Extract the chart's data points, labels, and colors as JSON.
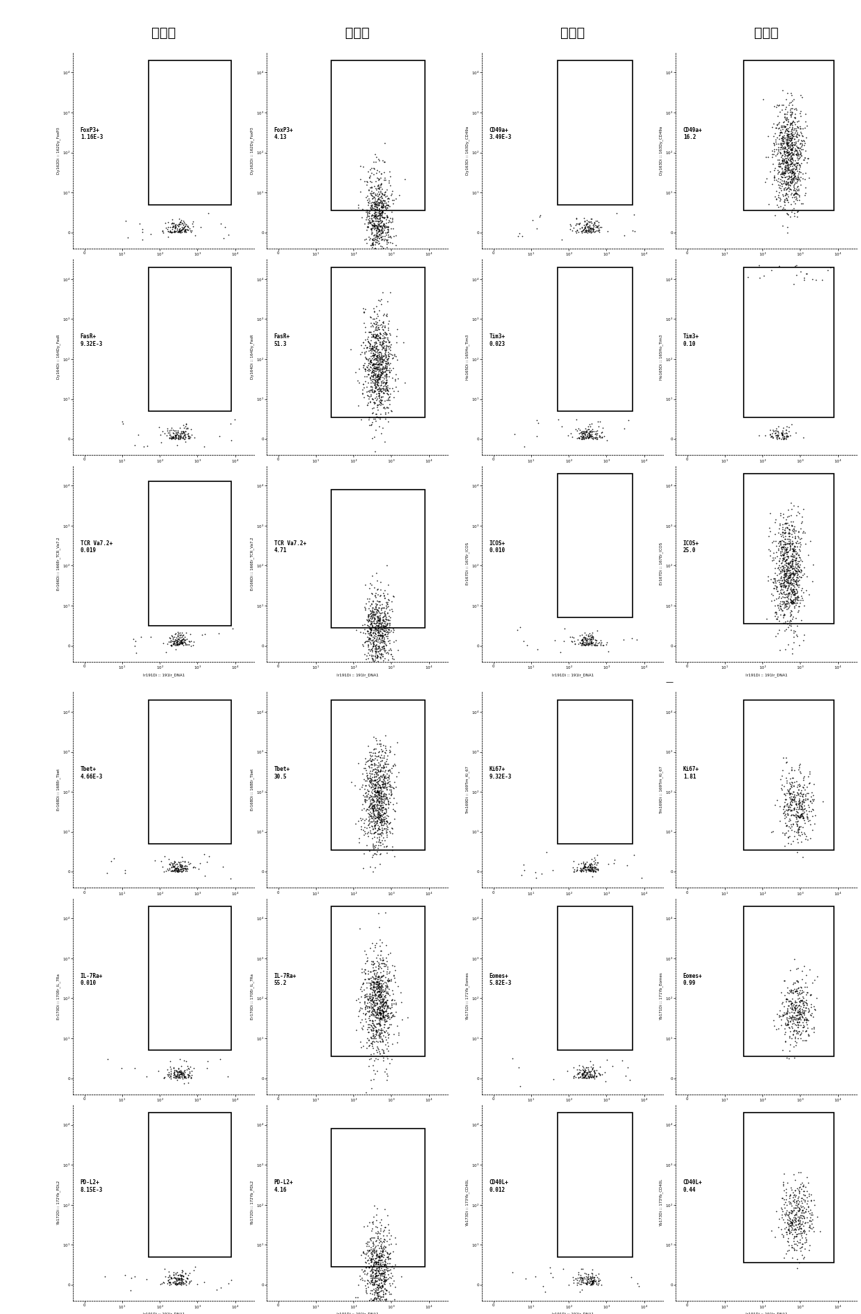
{
  "title_cols": [
    "对照组",
    "实验组",
    "对照组",
    "实验组"
  ],
  "background_color": "#ffffff",
  "panels": [
    {
      "row": 0,
      "col": 0,
      "ylabel": "Dy162Di :: 162Dy_FoxP3",
      "xlabel": "Ir191Di :: 191Ir_DNA1",
      "label": "FoxP3+\n1.16E-3",
      "cluster_type": "sparse_bottom",
      "gate": [
        1.7,
        0.7,
        3.9,
        4.3
      ]
    },
    {
      "row": 0,
      "col": 1,
      "ylabel": "Dy162Di :: 162Dy_FoxP3",
      "xlabel": "Ir191Di :: 191Ir_DNA1",
      "label": "FoxP3+\n4.13",
      "cluster_type": "dense_inside_bottom",
      "gate": [
        1.4,
        0.55,
        3.9,
        4.3
      ]
    },
    {
      "row": 0,
      "col": 2,
      "ylabel": "Dy163Di :: 163Dy_CD49a",
      "xlabel": "Ir191Di :: 191Ir_DNA1",
      "label": "CD49a+\n3.49E-3",
      "cluster_type": "sparse_bottom",
      "gate": [
        1.7,
        0.7,
        3.7,
        4.3
      ]
    },
    {
      "row": 0,
      "col": 3,
      "ylabel": "Dy163Di :: 163Dy_CD49a",
      "xlabel": "Ir191Di :: 191Ir_DNA1",
      "label": "CD49a+\n16.2",
      "cluster_type": "dense_inside_full",
      "gate": [
        1.5,
        0.55,
        3.9,
        4.3
      ]
    },
    {
      "row": 1,
      "col": 0,
      "ylabel": "Dy164Di :: 164Dy_FasR",
      "xlabel": "Ir191Di :: 191Ir_DNA1",
      "label": "FasR+\n9.32E-3",
      "cluster_type": "sparse_bottom",
      "gate": [
        1.7,
        0.7,
        3.9,
        4.3
      ]
    },
    {
      "row": 1,
      "col": 1,
      "ylabel": "Dy164Di :: 164Dy_FasR",
      "xlabel": "Ir191Di :: 191Ir_DNA1",
      "label": "FasR+\n51.3",
      "cluster_type": "dense_inside_full",
      "gate": [
        1.4,
        0.55,
        3.9,
        4.3
      ]
    },
    {
      "row": 1,
      "col": 2,
      "ylabel": "Ho165Di :: 165Ho_Tim3",
      "xlabel": "Ir191Di :: 191Ir_DNA1",
      "label": "Tim3+\n0.023",
      "cluster_type": "sparse_bottom",
      "gate": [
        1.7,
        0.7,
        3.7,
        4.3
      ]
    },
    {
      "row": 1,
      "col": 3,
      "ylabel": "Ho165Di :: 165Ho_Tim3",
      "xlabel": "Ir191Di :: 191Ir_DNA1",
      "label": "Tim3+\n0.10",
      "cluster_type": "sparse_top",
      "gate": [
        1.5,
        0.55,
        3.9,
        4.3
      ]
    },
    {
      "row": 2,
      "col": 0,
      "ylabel": "Er166Di :: 166Er_TCR_Va7.2",
      "xlabel": "Ir191Di :: 191Ir_DNA1",
      "label": "TCR Va7.2+\n0.019",
      "cluster_type": "sparse_bottom",
      "gate": [
        1.7,
        0.5,
        3.9,
        4.1
      ]
    },
    {
      "row": 2,
      "col": 1,
      "ylabel": "Er166Di :: 166Er_TCR_Va7.2",
      "xlabel": "Ir191Di :: 191Ir_DNA1",
      "label": "TCR Va7.2+\n4.71",
      "cluster_type": "dense_inside_bottom",
      "gate": [
        1.4,
        0.45,
        3.9,
        3.9
      ]
    },
    {
      "row": 2,
      "col": 2,
      "ylabel": "Er167Di :: 167Er_ICOS",
      "xlabel": "Ir191Di :: 191Ir_DNA1",
      "label": "ICOS+\n0.010",
      "cluster_type": "sparse_bottom",
      "gate": [
        1.7,
        0.7,
        3.7,
        4.3
      ]
    },
    {
      "row": 2,
      "col": 3,
      "ylabel": "Er167Di :: 167Er_ICOS",
      "xlabel": "Ir191Di :: 191Ir_DNA1",
      "label": "ICOS+\n25.0",
      "cluster_type": "dense_inside_full",
      "gate": [
        1.5,
        0.55,
        3.9,
        4.3
      ]
    },
    {
      "row": 3,
      "col": 0,
      "ylabel": "Er168Di :: 168Er_Tbet",
      "xlabel": "Ir191Di :: 191Ir_DNA1",
      "label": "Tbet+\n4.66E-3",
      "cluster_type": "sparse_bottom",
      "gate": [
        1.7,
        0.7,
        3.9,
        4.3
      ]
    },
    {
      "row": 3,
      "col": 1,
      "ylabel": "Er168Di :: 168Er_Tbet",
      "xlabel": "Ir191Di :: 191Ir_DNA1",
      "label": "Tbet+\n30.5",
      "cluster_type": "dense_inside_full",
      "gate": [
        1.4,
        0.55,
        3.9,
        4.3
      ]
    },
    {
      "row": 3,
      "col": 2,
      "ylabel": "Tm169Di :: 169Tm_Ki_67",
      "xlabel": "Ir191Di :: 191Ir_DNA1",
      "label": "Ki67+\n9.32E-3",
      "cluster_type": "sparse_bottom",
      "gate": [
        1.7,
        0.7,
        3.7,
        4.3
      ]
    },
    {
      "row": 3,
      "col": 3,
      "ylabel": "Tm169Di :: 169Tm_Ki_67",
      "xlabel": "Ir191Di :: 191Ir_DNA1",
      "label": "Ki67+\n1.81",
      "cluster_type": "dense_inside_mid",
      "gate": [
        1.5,
        0.55,
        3.9,
        4.3
      ]
    },
    {
      "row": 4,
      "col": 0,
      "ylabel": "Er170Di :: 170Er_IL_7Ra",
      "xlabel": "Ir191Di :: 191Ir_DNA1",
      "label": "IL-7Ra+\n0.010",
      "cluster_type": "sparse_bottom",
      "gate": [
        1.7,
        0.7,
        3.9,
        4.3
      ]
    },
    {
      "row": 4,
      "col": 1,
      "ylabel": "Er170Di :: 170Er_IL_7Ra",
      "xlabel": "Ir191Di :: 191Ir_DNA1",
      "label": "IL-7Ra+\n55.2",
      "cluster_type": "dense_inside_full",
      "gate": [
        1.4,
        0.55,
        3.9,
        4.3
      ]
    },
    {
      "row": 4,
      "col": 2,
      "ylabel": "Yb171Di :: 171Yb_Eomes",
      "xlabel": "Ir191Di :: 191Ir_DNA1",
      "label": "Eomes+\n5.82E-3",
      "cluster_type": "sparse_bottom",
      "gate": [
        1.7,
        0.7,
        3.7,
        4.3
      ]
    },
    {
      "row": 4,
      "col": 3,
      "ylabel": "Yb171Di :: 171Yb_Eomes",
      "xlabel": "Ir191Di :: 191Ir_DNA1",
      "label": "Eomes+\n0.99",
      "cluster_type": "dense_inside_mid",
      "gate": [
        1.5,
        0.55,
        3.9,
        4.3
      ]
    },
    {
      "row": 5,
      "col": 0,
      "ylabel": "Yb172Di :: 172Yb_PDL2",
      "xlabel": "Ir191Di :: 191Ir_DNA1",
      "label": "PD-L2+\n8.15E-3",
      "cluster_type": "sparse_bottom",
      "gate": [
        1.7,
        0.7,
        3.9,
        4.3
      ]
    },
    {
      "row": 5,
      "col": 1,
      "ylabel": "Yb172Di :: 172Yb_PDL2",
      "xlabel": "Ir191Di :: 191Ir_DNA1",
      "label": "PD-L2+\n4.16",
      "cluster_type": "dense_inside_bottom",
      "gate": [
        1.4,
        0.45,
        3.9,
        3.9
      ]
    },
    {
      "row": 5,
      "col": 2,
      "ylabel": "Yb173Di :: 173Yb_CD40L",
      "xlabel": "Ir191Di :: 191Ir_DNA1",
      "label": "CD40L+\n0.012",
      "cluster_type": "sparse_bottom",
      "gate": [
        1.7,
        0.7,
        3.7,
        4.3
      ]
    },
    {
      "row": 5,
      "col": 3,
      "ylabel": "Yb173Di :: 173Yb_CD40L",
      "xlabel": "Ir191Di :: 191Ir_DNA1",
      "label": "CD40L+\n0.44",
      "cluster_type": "dense_inside_mid",
      "gate": [
        1.5,
        0.55,
        3.9,
        4.3
      ]
    }
  ]
}
